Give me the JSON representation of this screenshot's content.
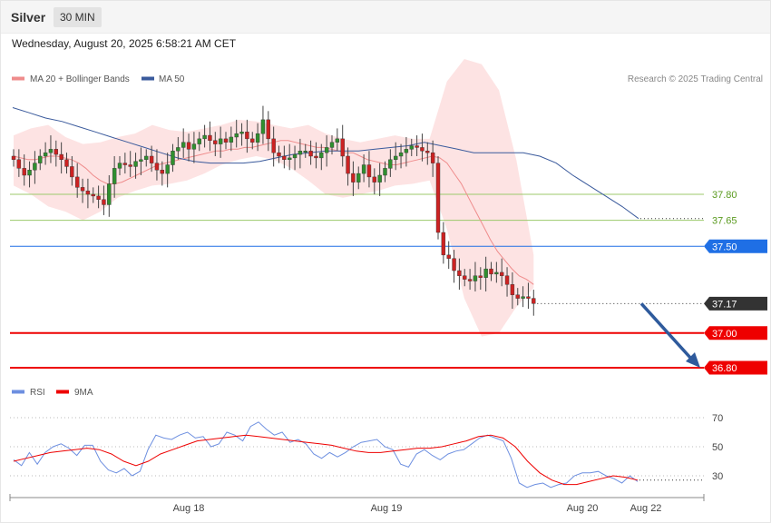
{
  "header": {
    "instrument": "Silver",
    "timeframe": "30 MIN",
    "datetime": "Wednesday, August 20, 2025 6:58:21 AM CET"
  },
  "legend": {
    "ma20": "MA 20 + Bollinger Bands",
    "ma50": "MA 50",
    "copyright": "Research © 2025 Trading Central",
    "rsi": "RSI",
    "rsi_ma": "9MA"
  },
  "colors": {
    "up": "#2f8f2f",
    "down": "#cc2222",
    "ma20": "#ef8c8c",
    "ma50": "#3a5a9c",
    "bollinger": "#fde3e3",
    "support": "#ee0000",
    "pivot": "#1f6fe5",
    "resistance": "#9cc96b",
    "arrow": "#2e5a9c",
    "rsi": "#6d8fe0",
    "rsi_ma": "#ee0000"
  },
  "chart_data": [
    {
      "type": "candlestick",
      "price_axis_range": [
        36.7,
        38.4
      ],
      "x_ticks": [
        "Aug 18",
        "Aug 19",
        "Aug 20",
        "Aug 22"
      ],
      "levels": [
        {
          "label": "37.80",
          "value": 37.8,
          "kind": "resistance"
        },
        {
          "label": "37.65",
          "value": 37.65,
          "kind": "resistance"
        },
        {
          "label": "37.50",
          "value": 37.5,
          "kind": "pivot"
        },
        {
          "label": "37.17",
          "value": 37.17,
          "kind": "last"
        },
        {
          "label": "37.00",
          "value": 37.0,
          "kind": "support"
        },
        {
          "label": "36.80",
          "value": 36.8,
          "kind": "support"
        }
      ],
      "forecast": {
        "from": 37.17,
        "to": 36.8,
        "direction": "down"
      },
      "close": [
        38.0,
        37.95,
        37.91,
        37.94,
        37.98,
        38.02,
        38.04,
        38.06,
        38.03,
        38.0,
        37.96,
        37.9,
        37.84,
        37.82,
        37.8,
        37.79,
        37.77,
        37.74,
        37.86,
        37.95,
        37.98,
        37.97,
        37.96,
        37.99,
        38.0,
        38.02,
        37.98,
        37.94,
        37.92,
        37.97,
        38.05,
        38.07,
        38.1,
        38.06,
        38.09,
        38.12,
        38.14,
        38.11,
        38.09,
        38.12,
        38.1,
        38.13,
        38.15,
        38.16,
        38.12,
        38.1,
        38.15,
        38.23,
        38.12,
        38.04,
        38.02,
        38.0,
        38.01,
        38.03,
        38.05,
        38.05,
        38.02,
        38.01,
        38.04,
        38.07,
        38.1,
        38.12,
        38.02,
        37.92,
        37.87,
        37.92,
        37.97,
        37.9,
        37.87,
        37.91,
        37.95,
        38.0,
        38.02,
        38.04,
        38.06,
        38.08,
        38.07,
        38.05,
        38.04,
        37.98,
        37.58,
        37.45,
        37.43,
        37.36,
        37.33,
        37.31,
        37.3,
        37.33,
        37.32,
        37.37,
        37.34,
        37.35,
        37.33,
        37.28,
        37.22,
        37.2,
        37.21,
        37.2,
        37.17
      ],
      "ma20": [
        38.02,
        38.01,
        38.0,
        38.0,
        38.01,
        38.02,
        38.02,
        38.01,
        38.0,
        37.98,
        37.95,
        37.91,
        37.88,
        37.86,
        37.86,
        37.87,
        37.89,
        37.91,
        37.93,
        37.95,
        37.97,
        37.98,
        37.99,
        38.0,
        38.01,
        38.02,
        38.03,
        38.04,
        38.05,
        38.05,
        38.06,
        38.06,
        38.07,
        38.07,
        38.08,
        38.09,
        38.1,
        38.11,
        38.11,
        38.1,
        38.09,
        38.08,
        38.07,
        38.07,
        38.06,
        38.05,
        38.04,
        38.04,
        38.02,
        38.0,
        37.99,
        37.98,
        37.97,
        37.97,
        37.98,
        37.99,
        38.0,
        38.01,
        38.02,
        38.01,
        37.98,
        37.92,
        37.86,
        37.78,
        37.7,
        37.62,
        37.54,
        37.47,
        37.42,
        37.37,
        37.33,
        37.31,
        37.28
      ],
      "ma50": [
        38.3,
        38.27,
        38.24,
        38.22,
        38.19,
        38.16,
        38.13,
        38.1,
        38.07,
        38.04,
        38.01,
        37.99,
        37.98,
        37.98,
        37.98,
        37.99,
        38.01,
        38.03,
        38.04,
        38.05,
        38.05,
        38.05,
        38.06,
        38.07,
        38.08,
        38.1,
        38.08,
        38.06,
        38.04,
        38.04,
        38.04,
        38.04,
        38.02,
        37.98,
        37.91,
        37.85,
        37.79,
        37.73,
        37.66
      ],
      "bollinger_upper": [
        38.14,
        38.18,
        38.2,
        38.13,
        38.09,
        38.1,
        38.13,
        38.15,
        38.2,
        38.17,
        38.16,
        38.18,
        38.2,
        38.23,
        38.22,
        38.2,
        38.18,
        38.2,
        38.15,
        38.12,
        38.1,
        38.12,
        38.14,
        38.12,
        38.12,
        38.45,
        38.58,
        38.55,
        38.4,
        38.0,
        37.45
      ],
      "bollinger_lower": [
        37.85,
        37.8,
        37.73,
        37.7,
        37.65,
        37.7,
        37.78,
        37.82,
        37.85,
        37.86,
        37.88,
        37.92,
        37.97,
        38.0,
        38.02,
        38.0,
        37.95,
        37.88,
        37.8,
        37.78,
        37.8,
        37.82,
        37.85,
        37.86,
        37.88,
        37.6,
        37.2,
        36.98,
        37.0,
        37.15,
        37.26
      ]
    },
    {
      "type": "line",
      "series_names": [
        "RSI",
        "9MA"
      ],
      "y_ticks": [
        70,
        50,
        30
      ],
      "y_range": [
        20,
        80
      ],
      "rsi": [
        41,
        37,
        46,
        38,
        46,
        50,
        52,
        49,
        44,
        51,
        51,
        40,
        34,
        32,
        35,
        30,
        33,
        48,
        58,
        56,
        55,
        58,
        60,
        56,
        57,
        50,
        52,
        60,
        58,
        54,
        64,
        67,
        62,
        58,
        60,
        53,
        55,
        52,
        45,
        42,
        46,
        43,
        46,
        50,
        53,
        54,
        55,
        50,
        48,
        38,
        36,
        45,
        48,
        44,
        41,
        45,
        47,
        48,
        52,
        56,
        58,
        56,
        54,
        42,
        25,
        22,
        24,
        25,
        22,
        24,
        25,
        30,
        32,
        32,
        33,
        30,
        28,
        25,
        30,
        26
      ],
      "rsi_ma": [
        40,
        42,
        44,
        46,
        47,
        48,
        49,
        48,
        45,
        40,
        37,
        40,
        45,
        48,
        51,
        54,
        55,
        56,
        57,
        58,
        57,
        56,
        55,
        54,
        53,
        52,
        51,
        49,
        47,
        46,
        46,
        47,
        48,
        49,
        49,
        50,
        52,
        54,
        57,
        58,
        56,
        50,
        40,
        32,
        27,
        24,
        24,
        26,
        28,
        30,
        29,
        27
      ]
    }
  ]
}
